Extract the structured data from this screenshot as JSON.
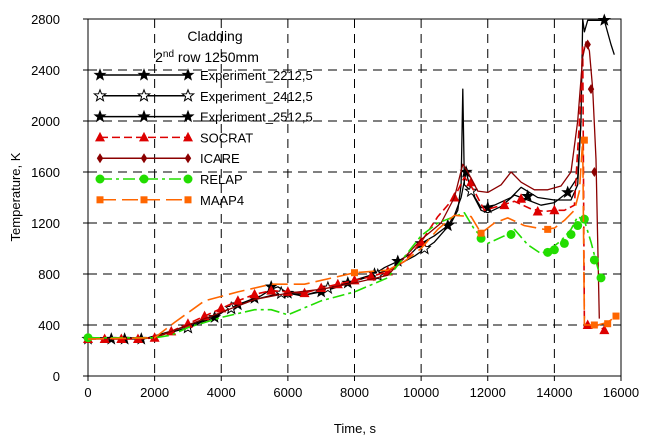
{
  "chart_data": {
    "type": "line",
    "title": "Cladding",
    "subtitle_parts": [
      "2",
      "nd",
      " row 1250mm"
    ],
    "xlabel": "Time, s",
    "ylabel": "Temperature, K",
    "xlim": [
      0,
      16000
    ],
    "ylim": [
      0,
      2800
    ],
    "x_ticks": [
      "0",
      "2000",
      "4000",
      "6000",
      "8000",
      "10000",
      "12000",
      "14000",
      "16000"
    ],
    "y_ticks": [
      "0",
      "400",
      "800",
      "1200",
      "1600",
      "2000",
      "2400",
      "2800"
    ],
    "grid": "dashed",
    "legend_position": "top-left",
    "series": [
      {
        "name": "Experiment_2212,5",
        "color": "#000000",
        "line_style": "solid",
        "marker": "star-filled",
        "x": [
          0,
          700,
          1100,
          1600,
          1900,
          2600,
          3000,
          3400,
          3800,
          4100,
          4500,
          4900,
          5200,
          5500,
          5700,
          6000,
          6400,
          7000,
          7400,
          7800,
          8100,
          8600,
          8900,
          9300,
          9700,
          10000,
          10400,
          10800,
          11000,
          11200,
          11350,
          11500,
          11800,
          12000,
          12400,
          12800,
          13200,
          13600,
          14000,
          14400,
          14700,
          14800,
          14850,
          14900,
          15000,
          15100,
          15300,
          15500,
          15700,
          15800
        ],
        "y": [
          290,
          290,
          290,
          290,
          300,
          350,
          380,
          420,
          460,
          510,
          560,
          600,
          630,
          680,
          700,
          650,
          630,
          660,
          690,
          730,
          760,
          800,
          850,
          900,
          960,
          1040,
          1100,
          1180,
          1260,
          1400,
          1600,
          1450,
          1300,
          1280,
          1330,
          1420,
          1380,
          1340,
          1360,
          1440,
          1560,
          2000,
          2800,
          2700,
          2790,
          2790,
          2790,
          2790,
          2600,
          2520
        ],
        "marker_x": [
          0,
          700,
          1100,
          1600,
          3000,
          3800,
          4500,
          5000,
          5500,
          6000,
          7000,
          7800,
          8600,
          9300,
          10000,
          10800,
          11350,
          12000,
          13200,
          14400,
          15500
        ],
        "marker_y": [
          290,
          290,
          290,
          290,
          380,
          460,
          560,
          610,
          700,
          650,
          660,
          730,
          800,
          900,
          1040,
          1180,
          1600,
          1320,
          1410,
          1440,
          2790
        ]
      },
      {
        "name": "Experiment_2412,5",
        "color": "#000000",
        "line_style": "solid",
        "marker": "star-open",
        "x": [
          0,
          1000,
          1800,
          2600,
          3400,
          4200,
          5000,
          5800,
          6600,
          7400,
          8200,
          9000,
          9800,
          10400,
          10900,
          11100,
          11200,
          11250,
          11300,
          11500,
          11800,
          12200,
          12700,
          13000,
          13500,
          14000,
          14500,
          14700,
          14800
        ],
        "y": [
          300,
          300,
          300,
          360,
          430,
          520,
          600,
          650,
          640,
          700,
          760,
          830,
          940,
          1050,
          1200,
          1300,
          1500,
          2250,
          1500,
          1450,
          1320,
          1340,
          1400,
          1480,
          1400,
          1380,
          1380,
          1500,
          2000
        ],
        "marker_x": [
          3000,
          4300,
          5800,
          7200,
          8700,
          10100,
          11500
        ],
        "marker_y": [
          380,
          530,
          650,
          690,
          790,
          1000,
          1450
        ]
      },
      {
        "name": "Experiment_2512,5",
        "color": "#000000",
        "line_style": "solid",
        "marker": "star-filled",
        "x": [],
        "y": [],
        "marker_x": [],
        "marker_y": []
      },
      {
        "name": "SOCRAT",
        "color": "#dd0000",
        "line_style": "dashed",
        "marker": "triangle",
        "x": [
          0,
          500,
          1000,
          1500,
          2000,
          2500,
          3000,
          3500,
          4000,
          4500,
          5000,
          5500,
          6000,
          6500,
          7000,
          7500,
          8000,
          8500,
          9000,
          9500,
          10000,
          10500,
          11000,
          11300,
          11600,
          11900,
          12300,
          12800,
          13300,
          13700,
          14000,
          14300,
          14600,
          14800,
          14850,
          14900,
          15100,
          15300,
          15400,
          15500
        ],
        "y": [
          290,
          290,
          290,
          290,
          300,
          350,
          410,
          470,
          530,
          590,
          640,
          670,
          660,
          650,
          690,
          720,
          750,
          780,
          820,
          900,
          1050,
          1250,
          1400,
          1560,
          1450,
          1300,
          1330,
          1370,
          1310,
          1290,
          1300,
          1300,
          1340,
          2200,
          2600,
          380,
          400,
          400,
          380,
          360
        ],
        "marker_x": [
          0,
          500,
          1000,
          1500,
          2000,
          2500,
          3000,
          3500,
          4000,
          4500,
          5000,
          5500,
          6000,
          6500,
          7000,
          7500,
          8000,
          8500,
          9000,
          10000,
          11000,
          11500,
          12500,
          13000,
          13500,
          14000,
          15000,
          15500
        ],
        "marker_y": [
          290,
          290,
          290,
          290,
          300,
          350,
          410,
          470,
          530,
          590,
          640,
          670,
          660,
          650,
          690,
          720,
          750,
          780,
          820,
          1050,
          1400,
          1520,
          1340,
          1390,
          1290,
          1300,
          400,
          360
        ]
      },
      {
        "name": "ICARE",
        "color": "#8b0000",
        "line_style": "solid",
        "marker": "diamond",
        "x": [
          0,
          2000,
          3000,
          4000,
          5000,
          6000,
          7000,
          8000,
          9000,
          10000,
          10600,
          11000,
          11250,
          11400,
          11700,
          12000,
          12400,
          12700,
          13000,
          13400,
          13800,
          14200,
          14500,
          14700,
          14850,
          14950,
          15050,
          15150,
          15250,
          15350
        ],
        "y": [
          290,
          300,
          400,
          500,
          600,
          650,
          680,
          730,
          790,
          1070,
          1200,
          1400,
          1660,
          1600,
          1450,
          1440,
          1500,
          1600,
          1520,
          1460,
          1460,
          1490,
          1600,
          2000,
          2500,
          2620,
          2550,
          2250,
          1700,
          450
        ],
        "marker_x": [
          15000,
          15100,
          15200
        ],
        "marker_y": [
          2600,
          2250,
          1600
        ]
      },
      {
        "name": "RELAP",
        "color": "#22dd00",
        "line_style": "dashdot",
        "marker": "circle",
        "x": [
          0,
          1000,
          2000,
          2500,
          3000,
          4000,
          5000,
          5500,
          6000,
          7000,
          8000,
          9000,
          10000,
          10500,
          11000,
          11300,
          11600,
          12000,
          12500,
          12800,
          13200,
          13600,
          13900,
          14200,
          14500,
          14700,
          14900,
          15100,
          15300,
          15400
        ],
        "y": [
          300,
          300,
          300,
          320,
          380,
          460,
          520,
          520,
          480,
          590,
          660,
          770,
          1100,
          1200,
          1250,
          1280,
          1150,
          1040,
          1100,
          1150,
          1030,
          960,
          1000,
          1060,
          1150,
          1250,
          1220,
          1050,
          850,
          760
        ],
        "marker_x": [
          0,
          11800,
          12700,
          13800,
          14000,
          14300,
          14500,
          14700,
          14900,
          15200,
          15400
        ],
        "marker_y": [
          300,
          1080,
          1110,
          970,
          990,
          1040,
          1110,
          1180,
          1230,
          910,
          770
        ]
      },
      {
        "name": "MAAP4",
        "color": "#ff6600",
        "line_style": "longdash",
        "marker": "square",
        "x": [
          0,
          2000,
          2600,
          3500,
          4500,
          5500,
          6500,
          7500,
          8000,
          8500,
          9000,
          9500,
          10000,
          10500,
          11000,
          11500,
          11800,
          12200,
          12600,
          13100,
          13700,
          14000,
          14300,
          14600,
          14750,
          14850,
          14900,
          15100,
          15300,
          15600,
          15900
        ],
        "y": [
          290,
          300,
          420,
          590,
          660,
          720,
          720,
          780,
          810,
          820,
          830,
          900,
          1000,
          1150,
          1260,
          1250,
          1120,
          1200,
          1240,
          1180,
          1150,
          1160,
          1220,
          1300,
          1450,
          1850,
          400,
          400,
          400,
          420,
          480
        ],
        "marker_x": [
          8000,
          11800,
          13800,
          14900,
          15200,
          15600,
          15850
        ],
        "marker_y": [
          810,
          1120,
          1150,
          1850,
          400,
          410,
          470
        ]
      }
    ]
  }
}
